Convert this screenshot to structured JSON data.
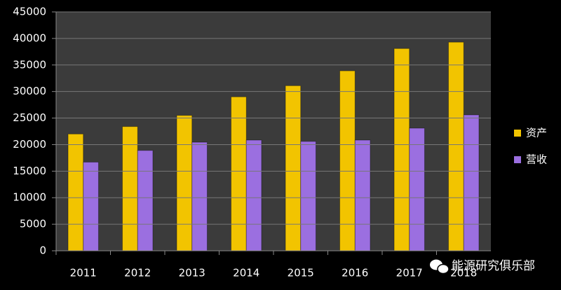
{
  "chart_data": {
    "type": "bar",
    "categories": [
      "2011",
      "2012",
      "2013",
      "2014",
      "2015",
      "2016",
      "2017",
      "2018"
    ],
    "series": [
      {
        "name": "资产",
        "color": "#f2c400",
        "values": [
          22000,
          23400,
          25500,
          29000,
          31100,
          33900,
          38100,
          39300
        ]
      },
      {
        "name": "营收",
        "color": "#9b6fe0",
        "values": [
          16700,
          18900,
          20450,
          20850,
          20600,
          20850,
          23100,
          25600
        ]
      }
    ],
    "ylim": [
      0,
      45000
    ],
    "yticks": [
      0,
      5000,
      10000,
      15000,
      20000,
      25000,
      30000,
      35000,
      40000,
      45000
    ],
    "grid": true,
    "legend": "right",
    "watermark": "能源研究俱乐部"
  }
}
